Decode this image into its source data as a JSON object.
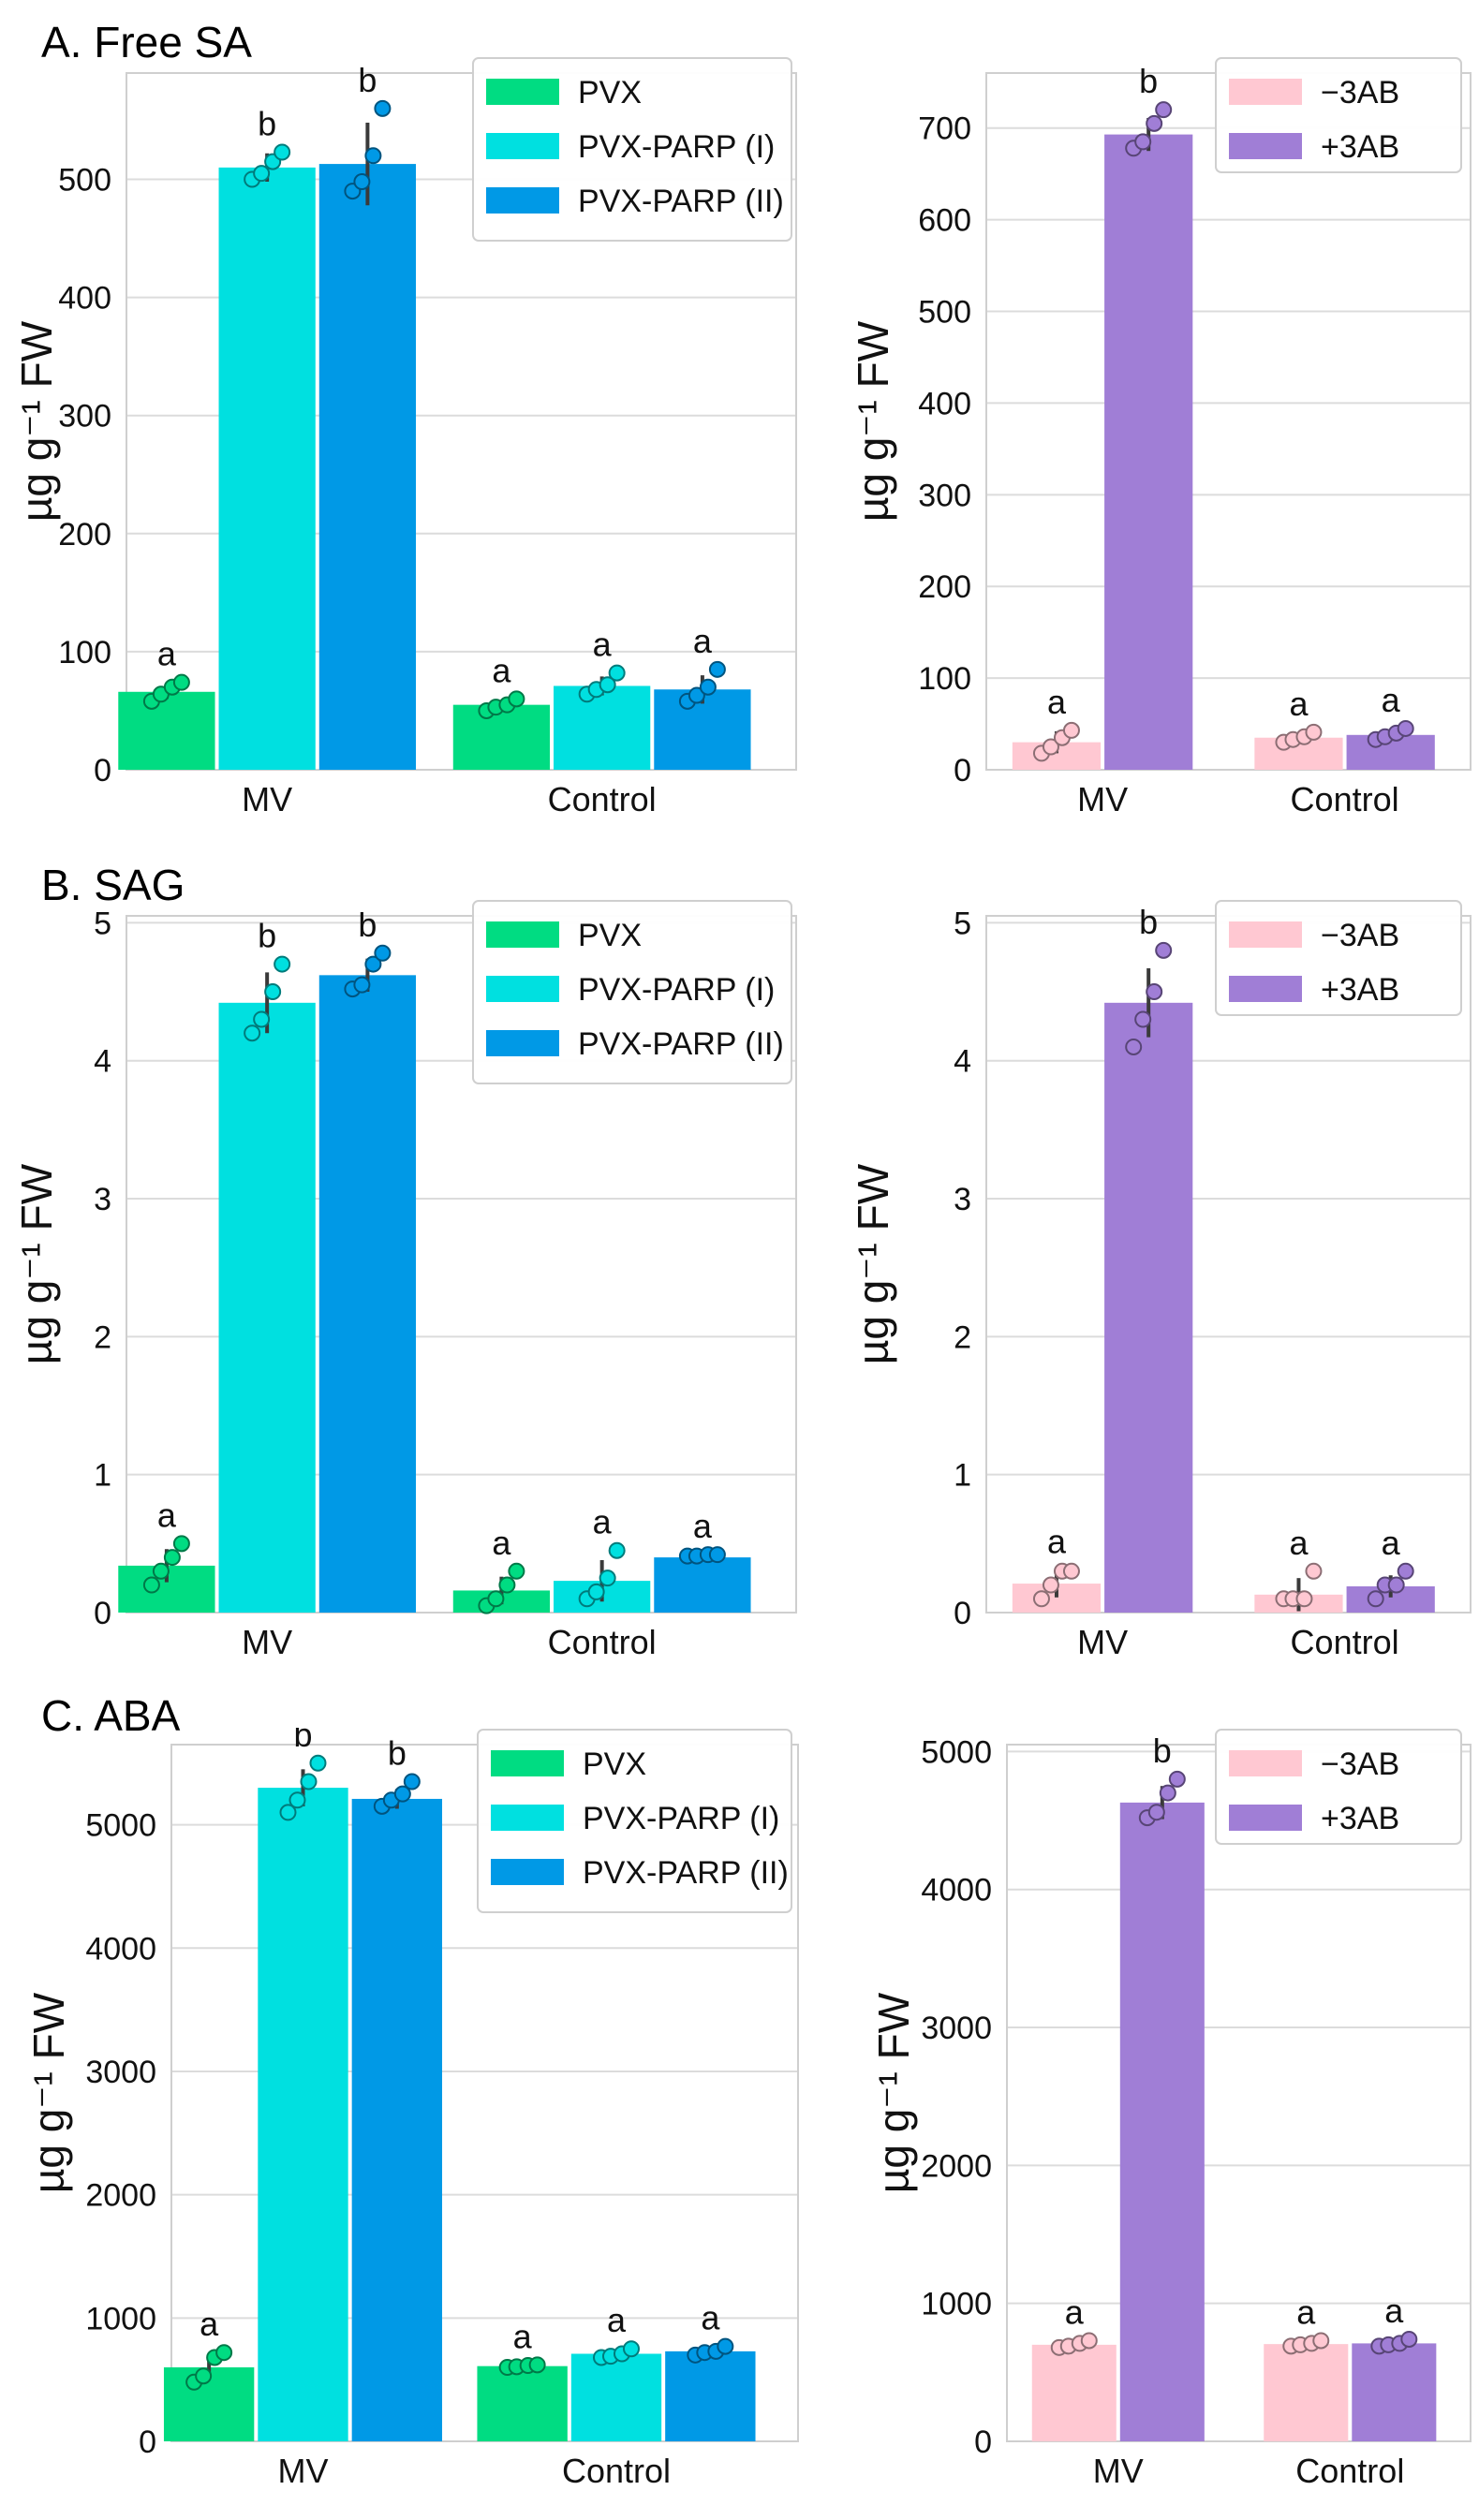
{
  "rows": [
    {
      "title": "A. Free SA"
    },
    {
      "title": "B. SAG"
    },
    {
      "title": "C. ABA"
    }
  ],
  "y_axis_label": "µg g⁻¹ FW",
  "colors": {
    "PVX": "#00dc82",
    "PVX-PARP (I)": "#00e0e0",
    "PVX-PARP (II)": "#0099e6",
    "-3AB": "#ffc8d2",
    "+3AB": "#a07ed6"
  },
  "chart_data": [
    {
      "id": "free-sa-left",
      "type": "bar",
      "row": 0,
      "col": 0,
      "categories": [
        "MV",
        "Control"
      ],
      "ylim": [
        0,
        590
      ],
      "yticks": [
        0,
        100,
        200,
        300,
        400,
        500
      ],
      "grid": true,
      "ylabel": "µg g⁻¹ FW",
      "legend_position": "top-right",
      "series": [
        {
          "name": "PVX",
          "values": [
            66,
            55
          ],
          "errors": [
            6,
            4
          ],
          "letters": [
            "a",
            "a"
          ],
          "points": [
            [
              58,
              64,
              70,
              74
            ],
            [
              50,
              53,
              55,
              60
            ]
          ]
        },
        {
          "name": "PVX-PARP (I)",
          "values": [
            510,
            71
          ],
          "errors": [
            12,
            8
          ],
          "letters": [
            "b",
            "a"
          ],
          "points": [
            [
              500,
              505,
              515,
              523
            ],
            [
              64,
              68,
              72,
              82
            ]
          ]
        },
        {
          "name": "PVX-PARP (II)",
          "values": [
            513,
            68
          ],
          "errors": [
            35,
            12
          ],
          "letters": [
            "b",
            "a"
          ],
          "points": [
            [
              490,
              498,
              520,
              560
            ],
            [
              58,
              63,
              70,
              85
            ]
          ]
        }
      ]
    },
    {
      "id": "free-sa-right",
      "type": "bar",
      "row": 0,
      "col": 1,
      "categories": [
        "MV",
        "Control"
      ],
      "ylim": [
        0,
        760
      ],
      "yticks": [
        0,
        100,
        200,
        300,
        400,
        500,
        600,
        700
      ],
      "grid": true,
      "ylabel": "µg g⁻¹ FW",
      "legend_position": "top-right",
      "series": [
        {
          "name": "−3AB",
          "values": [
            30,
            35
          ],
          "errors": [
            12,
            5
          ],
          "letters": [
            "a",
            "a"
          ],
          "points": [
            [
              18,
              25,
              35,
              43
            ],
            [
              30,
              33,
              36,
              41
            ]
          ]
        },
        {
          "name": "+3AB",
          "values": [
            693,
            38
          ],
          "errors": [
            18,
            5
          ],
          "letters": [
            "b",
            "a"
          ],
          "points": [
            [
              678,
              685,
              705,
              720
            ],
            [
              33,
              36,
              40,
              45
            ]
          ]
        }
      ]
    },
    {
      "id": "sag-left",
      "type": "bar",
      "row": 1,
      "col": 0,
      "categories": [
        "MV",
        "Control"
      ],
      "ylim": [
        0,
        5.05
      ],
      "yticks": [
        0,
        1,
        2,
        3,
        4,
        5
      ],
      "grid": true,
      "ylabel": "µg g⁻¹ FW",
      "legend_position": "top-right",
      "series": [
        {
          "name": "PVX",
          "values": [
            0.34,
            0.16
          ],
          "errors": [
            0.12,
            0.1
          ],
          "letters": [
            "a",
            "a"
          ],
          "points": [
            [
              0.2,
              0.3,
              0.4,
              0.5
            ],
            [
              0.05,
              0.1,
              0.2,
              0.3
            ]
          ]
        },
        {
          "name": "PVX-PARP (I)",
          "values": [
            4.42,
            0.23
          ],
          "errors": [
            0.22,
            0.15
          ],
          "letters": [
            "b",
            "a"
          ],
          "points": [
            [
              4.2,
              4.3,
              4.5,
              4.7
            ],
            [
              0.1,
              0.15,
              0.25,
              0.45
            ]
          ]
        },
        {
          "name": "PVX-PARP (II)",
          "values": [
            4.62,
            0.4
          ],
          "errors": [
            0.12,
            0.02
          ],
          "letters": [
            "b",
            "a"
          ],
          "points": [
            [
              4.52,
              4.55,
              4.7,
              4.78
            ],
            [
              0.41,
              0.41,
              0.42,
              0.42
            ]
          ]
        }
      ]
    },
    {
      "id": "sag-right",
      "type": "bar",
      "row": 1,
      "col": 1,
      "categories": [
        "MV",
        "Control"
      ],
      "ylim": [
        0,
        5.05
      ],
      "yticks": [
        0,
        1,
        2,
        3,
        4,
        5
      ],
      "grid": true,
      "ylabel": "µg g⁻¹ FW",
      "legend_position": "top-right",
      "series": [
        {
          "name": "−3AB",
          "values": [
            0.21,
            0.13
          ],
          "errors": [
            0.1,
            0.12
          ],
          "letters": [
            "a",
            "a"
          ],
          "points": [
            [
              0.1,
              0.2,
              0.3,
              0.3
            ],
            [
              0.1,
              0.1,
              0.1,
              0.3
            ]
          ]
        },
        {
          "name": "+3AB",
          "values": [
            4.42,
            0.19
          ],
          "errors": [
            0.25,
            0.08
          ],
          "letters": [
            "b",
            "a"
          ],
          "points": [
            [
              4.1,
              4.3,
              4.5,
              4.8
            ],
            [
              0.1,
              0.2,
              0.2,
              0.3
            ]
          ]
        }
      ]
    },
    {
      "id": "aba-left",
      "type": "bar",
      "row": 2,
      "col": 0,
      "categories": [
        "MV",
        "Control"
      ],
      "ylim": [
        0,
        5650
      ],
      "yticks": [
        0,
        1000,
        2000,
        3000,
        4000,
        5000
      ],
      "grid": true,
      "ylabel": "µg g⁻¹ FW",
      "legend_position": "top-right",
      "series": [
        {
          "name": "PVX",
          "values": [
            600,
            610
          ],
          "errors": [
            100,
            10
          ],
          "letters": [
            "a",
            "a"
          ],
          "points": [
            [
              480,
              530,
              680,
              720
            ],
            [
              600,
              605,
              615,
              620
            ]
          ]
        },
        {
          "name": "PVX-PARP (I)",
          "values": [
            5300,
            710
          ],
          "errors": [
            150,
            35
          ],
          "letters": [
            "b",
            "a"
          ],
          "points": [
            [
              5100,
              5200,
              5350,
              5500
            ],
            [
              680,
              690,
              710,
              750
            ]
          ]
        },
        {
          "name": "PVX-PARP (II)",
          "values": [
            5210,
            730
          ],
          "errors": [
            80,
            30
          ],
          "letters": [
            "b",
            "a"
          ],
          "points": [
            [
              5150,
              5200,
              5250,
              5350
            ],
            [
              700,
              720,
              730,
              770
            ]
          ]
        }
      ]
    },
    {
      "id": "aba-right",
      "type": "bar",
      "row": 2,
      "col": 1,
      "categories": [
        "MV",
        "Control"
      ],
      "ylim": [
        0,
        5050
      ],
      "yticks": [
        0,
        1000,
        2000,
        3000,
        4000,
        5000
      ],
      "grid": true,
      "ylabel": "µg g⁻¹ FW",
      "legend_position": "top-right",
      "series": [
        {
          "name": "−3AB",
          "values": [
            700,
            705
          ],
          "errors": [
            30,
            25
          ],
          "letters": [
            "a",
            "a"
          ],
          "points": [
            [
              680,
              690,
              710,
              730
            ],
            [
              690,
              700,
              710,
              730
            ]
          ]
        },
        {
          "name": "+3AB",
          "values": [
            4630,
            710
          ],
          "errors": [
            120,
            25
          ],
          "letters": [
            "b",
            "a"
          ],
          "points": [
            [
              4520,
              4560,
              4700,
              4800
            ],
            [
              690,
              700,
              710,
              740
            ]
          ]
        }
      ]
    }
  ]
}
